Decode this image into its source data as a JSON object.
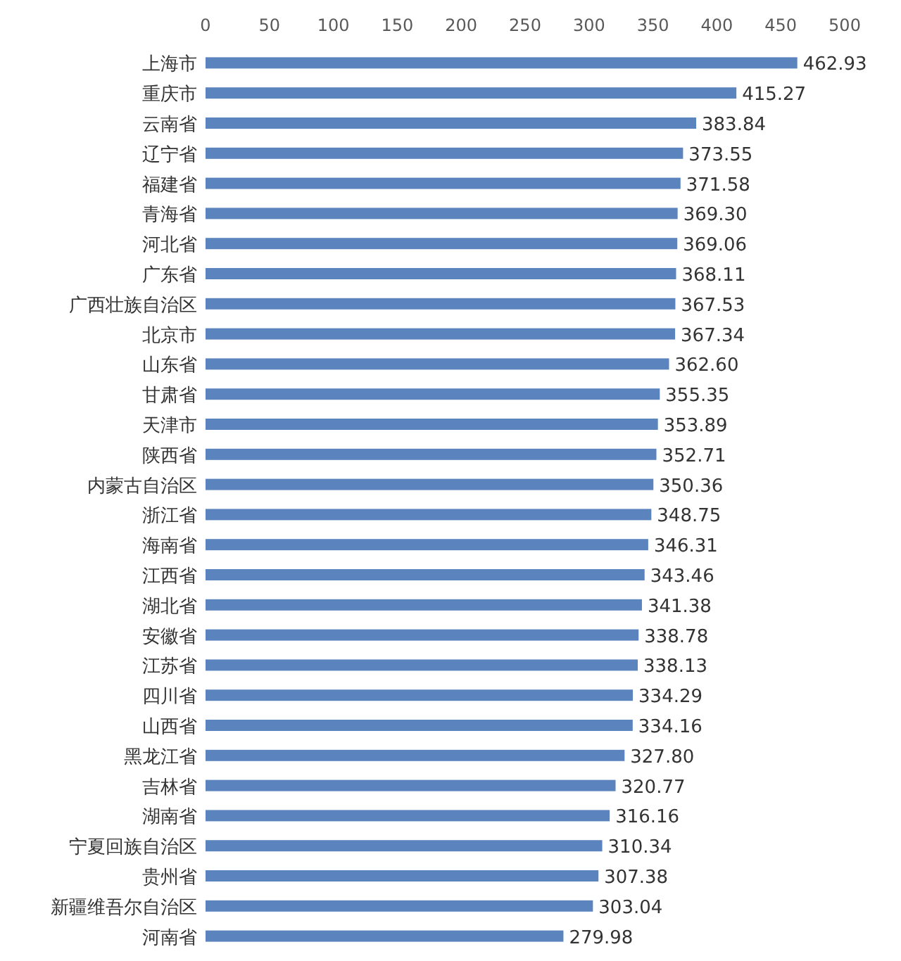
{
  "chart_data": {
    "type": "bar",
    "orientation": "horizontal",
    "color": "#5b84bf",
    "categories": [
      "上海市",
      "重庆市",
      "云南省",
      "辽宁省",
      "福建省",
      "青海省",
      "河北省",
      "广东省",
      "广西壮族自治区",
      "北京市",
      "山东省",
      "甘肃省",
      "天津市",
      "陕西省",
      "内蒙古自治区",
      "浙江省",
      "海南省",
      "江西省",
      "湖北省",
      "安徽省",
      "江苏省",
      "四川省",
      "山西省",
      "黑龙江省",
      "吉林省",
      "湖南省",
      "宁夏回族自治区",
      "贵州省",
      "新疆维吾尔自治区",
      "河南省"
    ],
    "values": [
      462.93,
      415.27,
      383.84,
      373.55,
      371.58,
      369.3,
      369.06,
      368.11,
      367.53,
      367.34,
      362.6,
      355.35,
      353.89,
      352.71,
      350.36,
      348.75,
      346.31,
      343.46,
      341.38,
      338.78,
      338.13,
      334.29,
      334.16,
      327.8,
      320.77,
      316.16,
      310.34,
      307.38,
      303.04,
      279.98
    ],
    "value_labels": [
      "462.93",
      "415.27",
      "383.84",
      "373.55",
      "371.58",
      "369.30",
      "369.06",
      "368.11",
      "367.53",
      "367.34",
      "362.60",
      "355.35",
      "353.89",
      "352.71",
      "350.36",
      "348.75",
      "346.31",
      "343.46",
      "341.38",
      "338.78",
      "338.13",
      "334.29",
      "334.16",
      "327.80",
      "320.77",
      "316.16",
      "310.34",
      "307.38",
      "303.04",
      "279.98"
    ],
    "xlim": [
      0,
      500
    ],
    "xticks": [
      0,
      50,
      100,
      150,
      200,
      250,
      300,
      350,
      400,
      450,
      500
    ]
  }
}
